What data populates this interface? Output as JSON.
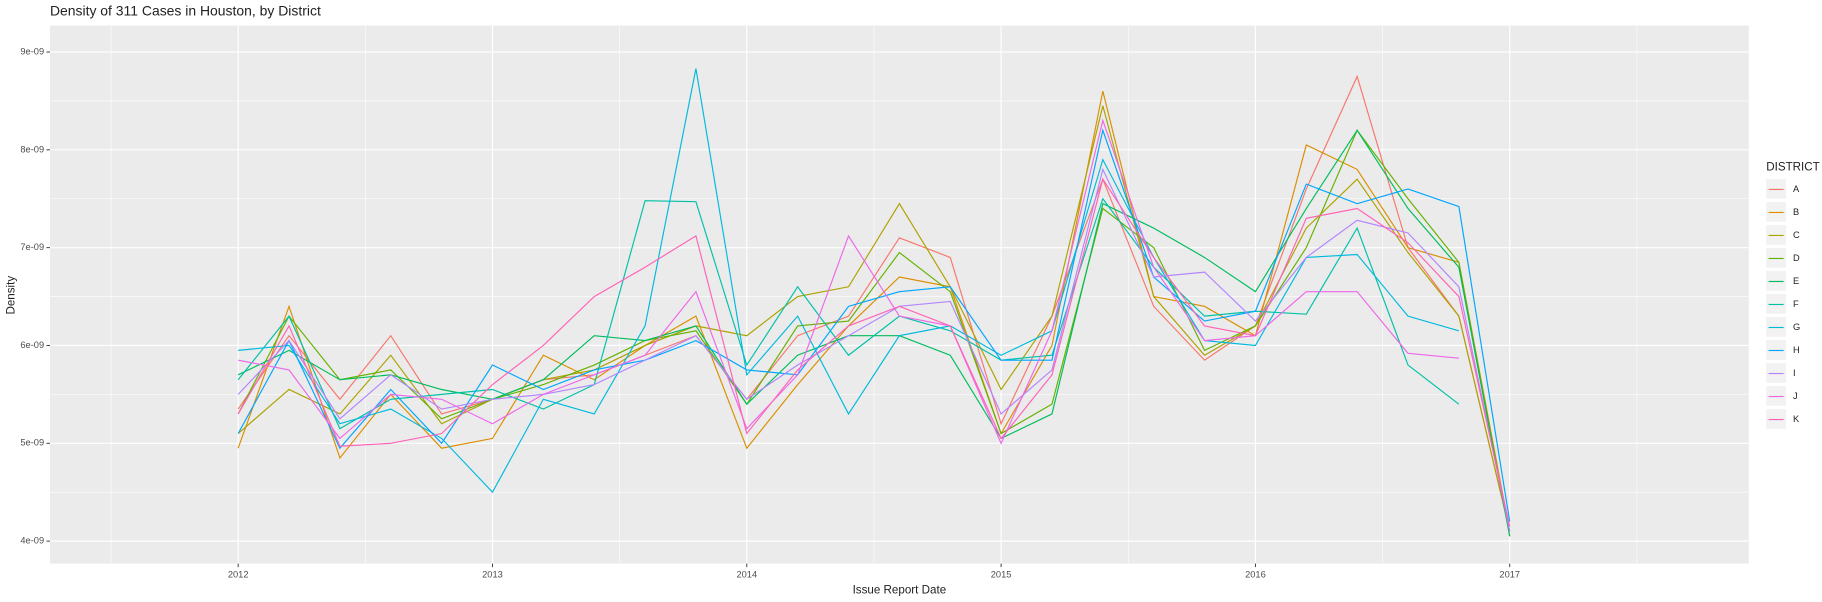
{
  "chart_data": {
    "type": "line",
    "title": "Density of 311 Cases in Houston, by District",
    "xlabel": "Issue Report Date",
    "ylabel": "Density",
    "legend_title": "DISTRICT",
    "legend": "right",
    "grid": true,
    "x": [
      2012.0,
      2012.2,
      2012.4,
      2012.6,
      2012.8,
      2013.0,
      2013.2,
      2013.4,
      2013.6,
      2013.8,
      2014.0,
      2014.2,
      2014.4,
      2014.6,
      2014.8,
      2015.0,
      2015.2,
      2015.4,
      2015.6,
      2015.8,
      2016.0,
      2016.2,
      2016.4,
      2016.6,
      2016.8,
      2017.0
    ],
    "xlim": [
      2011.26,
      2017.94
    ],
    "xticks": [
      2012,
      2013,
      2014,
      2015,
      2016,
      2017
    ],
    "ylim": [
      3.77e-09,
      9.27e-09
    ],
    "yticks": [
      {
        "value": 4e-09,
        "label": "4e-09"
      },
      {
        "value": 5e-09,
        "label": "5e-09"
      },
      {
        "value": 6e-09,
        "label": "6e-09"
      },
      {
        "value": 7e-09,
        "label": "7e-09"
      },
      {
        "value": 8e-09,
        "label": "8e-09"
      },
      {
        "value": 9e-09,
        "label": "9e-09"
      }
    ],
    "series": [
      {
        "name": "A",
        "color": "#F8766D",
        "values": [
          5.35e-09,
          6.1e-09,
          5.45e-09,
          6.1e-09,
          5.3e-09,
          5.45e-09,
          5.65e-09,
          5.7e-09,
          5.9e-09,
          6.1e-09,
          5.45e-09,
          6.1e-09,
          6.3e-09,
          7.1e-09,
          6.9e-09,
          5.2e-09,
          6.3e-09,
          7.7e-09,
          6.4e-09,
          5.85e-09,
          6.2e-09,
          7.6e-09,
          8.75e-09,
          7e-09,
          6.3e-09,
          4.1e-09
        ]
      },
      {
        "name": "B",
        "color": "#DB8E00",
        "values": [
          4.95e-09,
          6.4e-09,
          4.85e-09,
          5.5e-09,
          4.95e-09,
          5.05e-09,
          5.9e-09,
          5.65e-09,
          6e-09,
          6.3e-09,
          4.95e-09,
          5.6e-09,
          6.2e-09,
          6.7e-09,
          6.6e-09,
          5.1e-09,
          6e-09,
          8.6e-09,
          6.5e-09,
          6.4e-09,
          6.1e-09,
          8.05e-09,
          7.8e-09,
          7e-09,
          6.85e-09,
          4.1e-09
        ]
      },
      {
        "name": "C",
        "color": "#AEA200",
        "values": [
          5.1e-09,
          5.55e-09,
          5.3e-09,
          5.9e-09,
          5.2e-09,
          5.45e-09,
          5.65e-09,
          5.75e-09,
          6e-09,
          6.2e-09,
          6.1e-09,
          6.5e-09,
          6.6e-09,
          7.45e-09,
          6.6e-09,
          5.55e-09,
          6.3e-09,
          8.45e-09,
          6.5e-09,
          5.9e-09,
          6.2e-09,
          7.2e-09,
          7.7e-09,
          6.95e-09,
          6.3e-09,
          4.1e-09
        ]
      },
      {
        "name": "D",
        "color": "#64B200",
        "values": [
          5.3e-09,
          6.3e-09,
          5.65e-09,
          5.75e-09,
          5.25e-09,
          5.45e-09,
          5.6e-09,
          5.8e-09,
          6.05e-09,
          6.15e-09,
          5.4e-09,
          6.2e-09,
          6.25e-09,
          6.95e-09,
          6.55e-09,
          5.1e-09,
          5.4e-09,
          7.4e-09,
          7e-09,
          5.95e-09,
          6.2e-09,
          7e-09,
          8.2e-09,
          7.5e-09,
          6.85e-09,
          4.05e-09
        ]
      },
      {
        "name": "E",
        "color": "#00BD5C",
        "values": [
          5.7e-09,
          5.95e-09,
          5.65e-09,
          5.7e-09,
          5.55e-09,
          5.45e-09,
          5.65e-09,
          6.1e-09,
          6.05e-09,
          6.2e-09,
          5.4e-09,
          5.9e-09,
          6.1e-09,
          6.1e-09,
          5.9e-09,
          5.05e-09,
          5.3e-09,
          7.45e-09,
          7.2e-09,
          6.9e-09,
          6.55e-09,
          7.4e-09,
          8.2e-09,
          7.4e-09,
          6.8e-09,
          4.05e-09
        ]
      },
      {
        "name": "F",
        "color": "#00C1A7",
        "values": [
          5.65e-09,
          6.3e-09,
          5.15e-09,
          5.45e-09,
          5.5e-09,
          5.55e-09,
          5.35e-09,
          5.6e-09,
          7.48e-09,
          7.47e-09,
          5.8e-09,
          6.6e-09,
          5.9e-09,
          6.3e-09,
          6.15e-09,
          5.85e-09,
          5.9e-09,
          7.5e-09,
          6.8e-09,
          6.3e-09,
          6.35e-09,
          6.32e-09,
          7.2e-09,
          5.8e-09,
          5.4e-09,
          null
        ]
      },
      {
        "name": "G",
        "color": "#00BADE",
        "values": [
          5.95e-09,
          6e-09,
          5.2e-09,
          5.35e-09,
          5.05e-09,
          4.5e-09,
          5.45e-09,
          5.3e-09,
          6.2e-09,
          8.83e-09,
          5.7e-09,
          6.3e-09,
          5.3e-09,
          6.1e-09,
          6.2e-09,
          5.9e-09,
          6.15e-09,
          7.9e-09,
          6.9e-09,
          6.05e-09,
          6e-09,
          6.9e-09,
          6.93e-09,
          6.3e-09,
          6.15e-09,
          null
        ]
      },
      {
        "name": "H",
        "color": "#00A6FF",
        "values": [
          5.1e-09,
          6.05e-09,
          4.95e-09,
          5.55e-09,
          5e-09,
          5.8e-09,
          5.55e-09,
          5.75e-09,
          5.85e-09,
          6.05e-09,
          5.75e-09,
          5.7e-09,
          6.4e-09,
          6.55e-09,
          6.6e-09,
          5.85e-09,
          5.85e-09,
          8.2e-09,
          6.7e-09,
          6.25e-09,
          6.35e-09,
          7.65e-09,
          7.45e-09,
          7.6e-09,
          7.42e-09,
          4.2e-09
        ]
      },
      {
        "name": "I",
        "color": "#B385FF",
        "values": [
          5.5e-09,
          6.05e-09,
          5.25e-09,
          5.7e-09,
          5.35e-09,
          5.45e-09,
          5.5e-09,
          5.6e-09,
          5.85e-09,
          6.1e-09,
          5.45e-09,
          5.8e-09,
          6.1e-09,
          6.4e-09,
          6.45e-09,
          5.3e-09,
          5.75e-09,
          7.8e-09,
          6.7e-09,
          6.75e-09,
          6.25e-09,
          6.9e-09,
          7.28e-09,
          7.15e-09,
          6.6e-09,
          4.1e-09
        ]
      },
      {
        "name": "J",
        "color": "#EF67EB",
        "values": [
          5.85e-09,
          5.75e-09,
          5.05e-09,
          5.5e-09,
          5.45e-09,
          5.2e-09,
          5.5e-09,
          5.7e-09,
          5.9e-09,
          6.55e-09,
          5.15e-09,
          5.7e-09,
          7.12e-09,
          6.3e-09,
          6.2e-09,
          5e-09,
          6.15e-09,
          8.3e-09,
          6.8e-09,
          6.05e-09,
          6.1e-09,
          6.55e-09,
          6.55e-09,
          5.92e-09,
          5.87e-09,
          null
        ]
      },
      {
        "name": "K",
        "color": "#FF63B6",
        "values": [
          5.3e-09,
          6.2e-09,
          4.97e-09,
          5e-09,
          5.1e-09,
          5.6e-09,
          6e-09,
          6.5e-09,
          6.8e-09,
          7.12e-09,
          5.1e-09,
          5.75e-09,
          6.2e-09,
          6.4e-09,
          6.2e-09,
          5.05e-09,
          5.7e-09,
          7.7e-09,
          6.9e-09,
          6.2e-09,
          6.1e-09,
          7.3e-09,
          7.4e-09,
          7.05e-09,
          6.5e-09,
          4.15e-09
        ]
      }
    ]
  }
}
